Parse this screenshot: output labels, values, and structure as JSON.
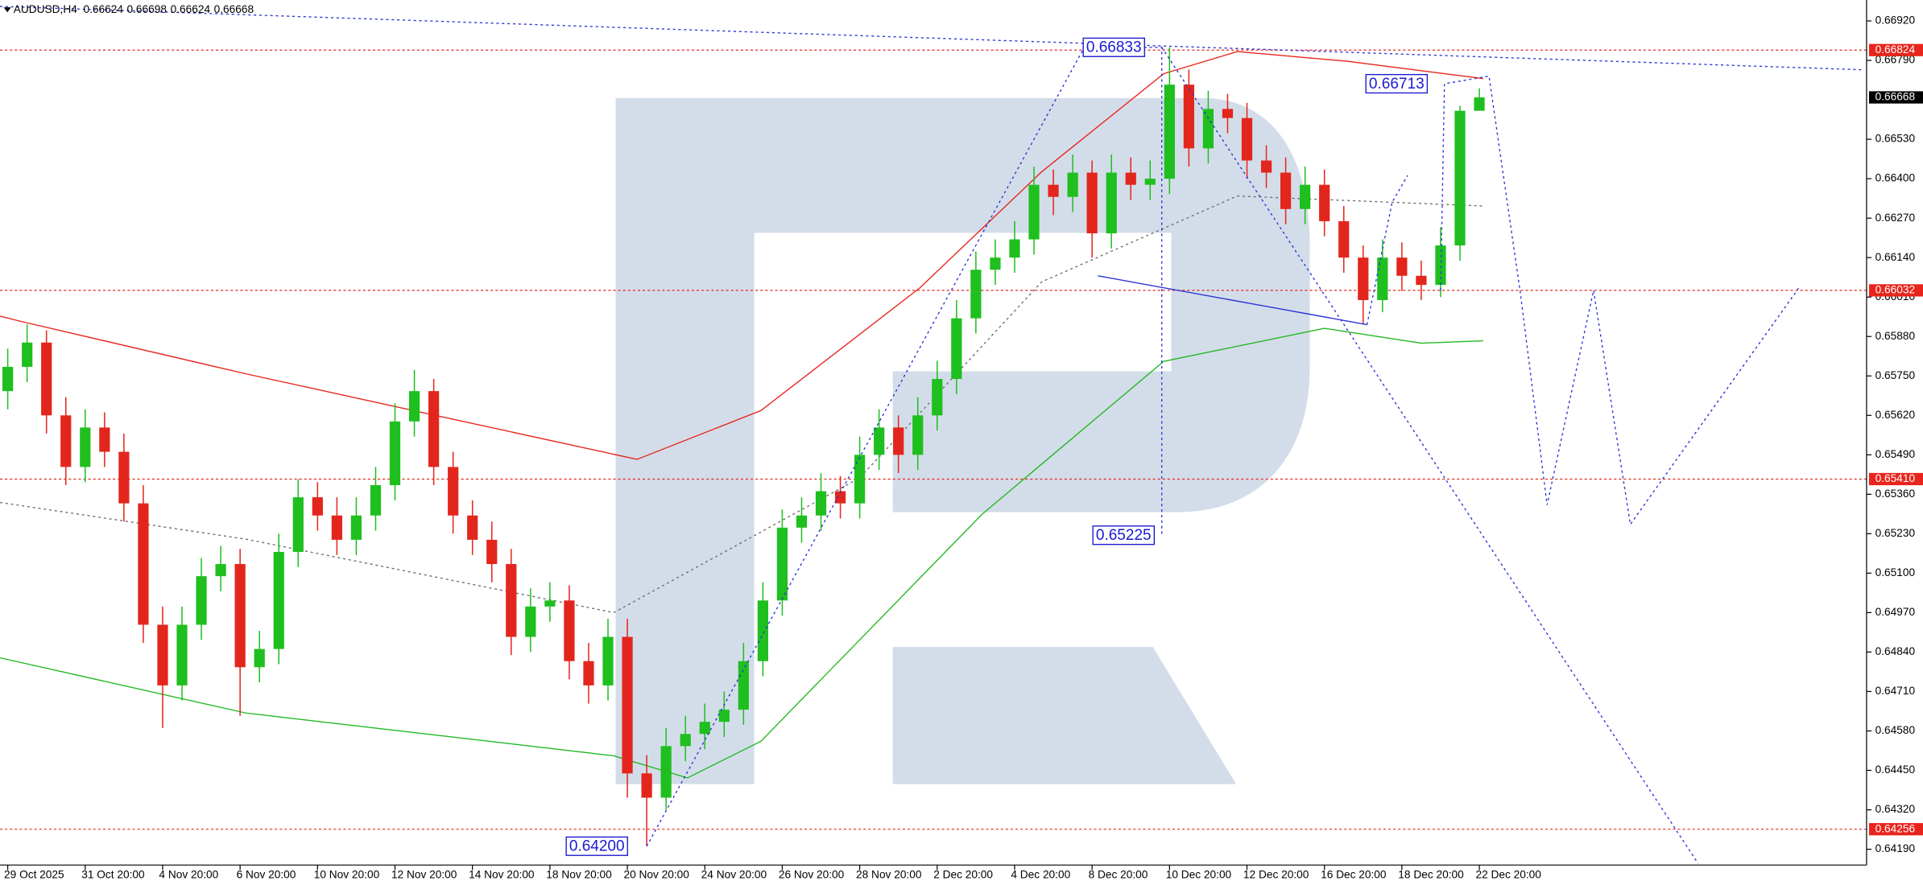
{
  "chart_data": {
    "type": "candlestick",
    "symbol": "AUDUSD,H4",
    "categories": [
      "29 Oct 2025",
      null,
      null,
      null,
      "31 Oct 20:00",
      null,
      null,
      null,
      "4 Nov 20:00",
      null,
      null,
      null,
      "6 Nov 20:00",
      null,
      null,
      null,
      "10 Nov 20:00",
      null,
      null,
      null,
      "12 Nov 20:00",
      null,
      null,
      null,
      "14 Nov 20:00",
      null,
      null,
      null,
      "18 Nov 20:00",
      null,
      null,
      null,
      "20 Nov 20:00",
      null,
      null,
      null,
      "24 Nov 20:00",
      null,
      null,
      null,
      "26 Nov 20:00",
      null,
      null,
      null,
      "28 Nov 20:00",
      null,
      null,
      null,
      "2 Dec 20:00",
      null,
      null,
      null,
      "4 Dec 20:00",
      null,
      null,
      null,
      "8 Dec 20:00",
      null,
      null,
      null,
      "10 Dec 20:00",
      null,
      null,
      null,
      "12 Dec 20:00",
      null,
      null,
      null,
      "16 Dec 20:00",
      null,
      null,
      null,
      "18 Dec 20:00",
      null,
      null,
      null,
      "22 Dec 20:00"
    ],
    "open": [
      0.657,
      0.6578,
      0.6586,
      0.6562,
      0.6545,
      0.6558,
      0.655,
      0.6533,
      0.6493,
      0.6473,
      0.6493,
      0.6509,
      0.6513,
      0.6479,
      0.6485,
      0.6517,
      0.6535,
      0.6529,
      0.6521,
      0.6529,
      0.6539,
      0.656,
      0.657,
      0.6545,
      0.6529,
      0.6521,
      0.6513,
      0.6489,
      0.6499,
      0.6501,
      0.6481,
      0.6473,
      0.6489,
      0.6444,
      0.6436,
      0.6453,
      0.6457,
      0.6461,
      0.6465,
      0.6481,
      0.6501,
      0.6525,
      0.6529,
      0.6537,
      0.6533,
      0.6549,
      0.6558,
      0.6549,
      0.6562,
      0.6574,
      0.6594,
      0.661,
      0.6614,
      0.662,
      0.6638,
      0.6634,
      0.6642,
      0.6622,
      0.6642,
      0.6638,
      0.664,
      0.6671,
      0.665,
      0.6663,
      0.666,
      0.6646,
      0.6642,
      0.663,
      0.6638,
      0.6626,
      0.6614,
      0.66,
      0.6614,
      0.6608,
      0.6605,
      0.6618,
      0.66624
    ],
    "high": [
      0.6584,
      0.6592,
      0.659,
      0.6568,
      0.6564,
      0.6563,
      0.6556,
      0.6539,
      0.6499,
      0.6499,
      0.6515,
      0.6519,
      0.6518,
      0.6491,
      0.6523,
      0.6541,
      0.654,
      0.6535,
      0.6535,
      0.6545,
      0.6566,
      0.6577,
      0.6574,
      0.655,
      0.6534,
      0.6527,
      0.6518,
      0.6505,
      0.6507,
      0.6506,
      0.6487,
      0.6495,
      0.6495,
      0.645,
      0.6459,
      0.6463,
      0.6467,
      0.6471,
      0.6487,
      0.6507,
      0.6531,
      0.6535,
      0.6543,
      0.6542,
      0.6555,
      0.6564,
      0.6562,
      0.6568,
      0.658,
      0.66,
      0.6616,
      0.662,
      0.6626,
      0.6644,
      0.6643,
      0.6648,
      0.6646,
      0.6648,
      0.6647,
      0.6646,
      0.66833,
      0.6676,
      0.6669,
      0.6668,
      0.6665,
      0.6651,
      0.6647,
      0.6644,
      0.6643,
      0.6631,
      0.6618,
      0.662,
      0.6619,
      0.6613,
      0.6624,
      0.6664,
      0.66698
    ],
    "low": [
      0.6564,
      0.6573,
      0.6556,
      0.6539,
      0.654,
      0.6545,
      0.6527,
      0.6487,
      0.6459,
      0.6468,
      0.6488,
      0.6504,
      0.6463,
      0.6474,
      0.648,
      0.6512,
      0.6524,
      0.6516,
      0.6516,
      0.6524,
      0.6534,
      0.6555,
      0.6539,
      0.6523,
      0.6516,
      0.6507,
      0.6483,
      0.6484,
      0.6494,
      0.6475,
      0.6467,
      0.6468,
      0.6436,
      0.642,
      0.6432,
      0.6448,
      0.6452,
      0.6456,
      0.646,
      0.6476,
      0.6496,
      0.652,
      0.6524,
      0.6528,
      0.6528,
      0.6544,
      0.6543,
      0.6544,
      0.6557,
      0.6569,
      0.6589,
      0.6605,
      0.6609,
      0.6615,
      0.6628,
      0.6629,
      0.6614,
      0.6617,
      0.6633,
      0.6633,
      0.6635,
      0.6644,
      0.6645,
      0.6655,
      0.664,
      0.6637,
      0.6625,
      0.6625,
      0.6621,
      0.6609,
      0.6592,
      0.6596,
      0.6603,
      0.66,
      0.6601,
      0.6613,
      0.66624
    ],
    "close": [
      0.6578,
      0.6586,
      0.6562,
      0.6545,
      0.6558,
      0.655,
      0.6533,
      0.6493,
      0.6473,
      0.6493,
      0.6509,
      0.6513,
      0.6479,
      0.6485,
      0.6517,
      0.6535,
      0.6529,
      0.6521,
      0.6529,
      0.6539,
      0.656,
      0.657,
      0.6545,
      0.6529,
      0.6521,
      0.6513,
      0.6489,
      0.6499,
      0.6501,
      0.6481,
      0.6473,
      0.6489,
      0.6444,
      0.6436,
      0.6453,
      0.6457,
      0.6461,
      0.6465,
      0.6481,
      0.6501,
      0.6525,
      0.6529,
      0.6537,
      0.6533,
      0.6549,
      0.6558,
      0.6549,
      0.6562,
      0.6574,
      0.6594,
      0.661,
      0.6614,
      0.662,
      0.6638,
      0.6634,
      0.6642,
      0.6622,
      0.6642,
      0.6638,
      0.664,
      0.6671,
      0.665,
      0.6663,
      0.666,
      0.6646,
      0.6642,
      0.663,
      0.6638,
      0.6626,
      0.6614,
      0.66,
      0.6614,
      0.6608,
      0.6605,
      0.6618,
      0.66624,
      0.66668
    ],
    "up_color": "#1fbf1f",
    "down_color": "#e3261d",
    "xlim": [
      -0.4,
      96
    ],
    "ylim": [
      0.66989,
      0.64138
    ],
    "yticks": [
      {
        "value": 0.6692,
        "label": "0.66920"
      },
      {
        "value": 0.6679,
        "label": "0.66790"
      },
      {
        "value": 0.6653,
        "label": "0.66530"
      },
      {
        "value": 0.664,
        "label": "0.66400"
      },
      {
        "value": 0.6627,
        "label": "0.66270"
      },
      {
        "value": 0.6614,
        "label": "0.66140"
      },
      {
        "value": 0.6601,
        "label": "0.66010"
      },
      {
        "value": 0.6588,
        "label": "0.65880"
      },
      {
        "value": 0.6575,
        "label": "0.65750"
      },
      {
        "value": 0.6562,
        "label": "0.65620"
      },
      {
        "value": 0.6549,
        "label": "0.65490"
      },
      {
        "value": 0.6536,
        "label": "0.65360"
      },
      {
        "value": 0.6523,
        "label": "0.65230"
      },
      {
        "value": 0.651,
        "label": "0.65100"
      },
      {
        "value": 0.6497,
        "label": "0.64970"
      },
      {
        "value": 0.6484,
        "label": "0.64840"
      },
      {
        "value": 0.6471,
        "label": "0.64710"
      },
      {
        "value": 0.6458,
        "label": "0.64580"
      },
      {
        "value": 0.6445,
        "label": "0.64450"
      },
      {
        "value": 0.6432,
        "label": "0.64320"
      },
      {
        "value": 0.6419,
        "label": "0.64190"
      }
    ],
    "levels": [
      0.66824,
      0.66032,
      {
        "value": 0.6541,
        "label": "0.65410"
      },
      0.64256
    ],
    "level_color": "#e8251c",
    "overlays": [
      {
        "color": "#e8251c",
        "dashed": false,
        "x": [
          -0.4,
          0.6,
          12.3,
          21.8,
          32.5,
          38.9,
          47.1,
          53.4,
          59.7,
          63.5,
          69.2,
          76.2
        ],
        "values": [
          0.65947,
          0.65931,
          0.65757,
          0.65624,
          0.65475,
          0.65636,
          0.6604,
          0.66423,
          0.66746,
          0.66819,
          0.66787,
          0.6673
        ]
      },
      {
        "color": "#22b822",
        "dashed": false,
        "x": [
          -0.4,
          12.3,
          31.3,
          35.1,
          38.9,
          50.3,
          59.7,
          68,
          73,
          76.2
        ],
        "values": [
          0.64821,
          0.64639,
          0.64498,
          0.64425,
          0.64546,
          0.65293,
          0.65798,
          0.65907,
          0.65858,
          0.65866
        ]
      },
      {
        "color": "#6e6e6e",
        "dashed": true,
        "x": [
          -0.4,
          12.3,
          31.3,
          44,
          53.4,
          63.5,
          76.2
        ],
        "values": [
          0.65333,
          0.65212,
          0.6497,
          0.65414,
          0.6606,
          0.66343,
          0.6631
        ]
      }
    ],
    "drawings": [
      {
        "color": "#2a35d6",
        "dashed": true,
        "x": [
          -0.4,
          95.8
        ],
        "values": [
          0.66968,
          0.66759
        ]
      },
      {
        "color": "#2a35d6",
        "dashed": true,
        "x": [
          33,
          55.6,
          59.6,
          59.6
        ],
        "values": [
          0.642,
          0.66833,
          0.66833,
          0.65225
        ]
      },
      {
        "color": "#2a35d6",
        "dashed": true,
        "x": [
          59.6,
          87.3
        ],
        "values": [
          0.66833,
          0.64143
        ]
      },
      {
        "color": "#2a35d6",
        "dashed": false,
        "x": [
          56.3,
          70.2
        ],
        "values": [
          0.6608,
          0.65919
        ]
      },
      {
        "color": "#2a35d6",
        "dashed": true,
        "x": [
          70.2,
          71.5,
          72.3
        ],
        "values": [
          0.65919,
          0.66323,
          0.66411
        ]
      },
      {
        "color": "#2a35d6",
        "dashed": true,
        "x": [
          74,
          74.2,
          76.5,
          78.1,
          79.5,
          81.9,
          83.8,
          92.5
        ],
        "values": [
          0.66032,
          0.66713,
          0.66738,
          0.66032,
          0.65325,
          0.66032,
          0.65261,
          0.6604
        ]
      }
    ],
    "annotations": [
      {
        "x": 58.9,
        "value": 0.66833
      },
      {
        "x": 73.5,
        "value": 0.66713
      },
      {
        "x": 59.4,
        "value": 0.65225
      },
      {
        "x": 32.2,
        "value": 0.642,
        "label": "0.64200"
      }
    ]
  }
}
